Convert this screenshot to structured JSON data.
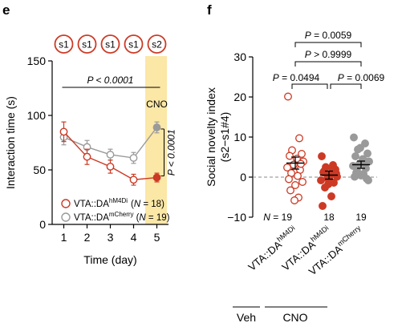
{
  "colors": {
    "red": "#cc3a25",
    "grey": "#9a9a9a",
    "highlight": "#fbe7a6",
    "axis": "#000000"
  },
  "panel_e": {
    "letter": "e",
    "session_labels": [
      "s1",
      "s1",
      "s1",
      "s1",
      "s2"
    ],
    "cno_label": "CNO",
    "pvalue_top": "P < 0.0001",
    "pvalue_side": "P < 0.0001",
    "legend": {
      "hm4di_prefix": "VTA::DA",
      "hm4di_sup": "hM4Di",
      "hm4di_n_open": "(",
      "hm4di_n_italic": "N",
      "hm4di_n_close": " = 18)",
      "mcherry_prefix": "VTA::DA",
      "mcherry_sup": "mCherry",
      "mcherry_n_open": "(",
      "mcherry_n_italic": "N",
      "mcherry_n_close": " = 19)"
    }
  },
  "panel_f": {
    "letter": "f",
    "pvalues": {
      "top": "P = 0.0059",
      "middle": "P > 0.9999",
      "left": "P = 0.0494",
      "right": "P = 0.0069"
    },
    "n_prefix": "N",
    "n_values": [
      "= 19",
      "18",
      "19"
    ],
    "group_labels": [
      {
        "prefix": "VTA::DA",
        "sup": "hM4Di"
      },
      {
        "prefix": "VTA::DA",
        "sup": "hM4Di"
      },
      {
        "prefix": "VTA::DA",
        "sup": "mCherry"
      }
    ],
    "bottom_groups": [
      "Veh",
      "CNO"
    ]
  },
  "chart_data": [
    {
      "type": "line",
      "panel": "e",
      "xlabel": "Time (day)",
      "ylabel": "Interaction time (s)",
      "x": [
        1,
        2,
        3,
        4,
        5
      ],
      "xlim": [
        0.5,
        5.5
      ],
      "ylim": [
        0,
        150
      ],
      "xticks": [
        "1",
        "2",
        "3",
        "4",
        "5"
      ],
      "yticks": [
        "0",
        "50",
        "100",
        "150"
      ],
      "series": [
        {
          "name": "VTA::DA hM4Di (N = 18)",
          "color": "#cc3a25",
          "marker": "open-circle-red",
          "values": [
            85,
            62,
            53,
            41,
            43
          ],
          "error": [
            9,
            7,
            6,
            5,
            4
          ],
          "day5_marker": "filled"
        },
        {
          "name": "VTA::DA mCherry (N = 19)",
          "color": "#9a9a9a",
          "marker": "open-circle-grey",
          "values": [
            80,
            71,
            64,
            61,
            89
          ],
          "error": [
            7,
            6,
            5,
            5,
            5
          ],
          "day5_marker": "filled"
        }
      ]
    },
    {
      "type": "scatter",
      "panel": "f",
      "ylabel": "Social novelty index (s2−s1#4)",
      "ylim": [
        -10,
        30
      ],
      "yticks": [
        "−10",
        "0",
        "10",
        "20",
        "30"
      ],
      "categories": [
        "Veh VTA::DA hM4Di",
        "CNO VTA::DA hM4Di",
        "CNO VTA::DA mCherry"
      ],
      "means": [
        3.5,
        0.5,
        3.1
      ],
      "sem": [
        1.5,
        1.0,
        0.9
      ],
      "points": [
        [
          20.1,
          9.7,
          6.7,
          5.8,
          5.3,
          4.6,
          3.9,
          3.1,
          2.4,
          1.8,
          1.0,
          0.3,
          -0.5,
          -1.2,
          -2.0,
          -3.3,
          -5.1,
          -5.8,
          3.3
        ],
        [
          5.2,
          3.0,
          2.5,
          1.9,
          1.2,
          0.6,
          0.1,
          -0.3,
          -0.8,
          -1.4,
          -2.6,
          -4.8,
          -7.2,
          0.9,
          -0.2,
          1.5,
          2.1,
          -1.8
        ],
        [
          9.9,
          8.4,
          6.9,
          5.9,
          5.2,
          4.5,
          3.9,
          3.3,
          2.8,
          2.2,
          1.6,
          0.8,
          0.1,
          -0.8,
          0.4,
          1.1,
          4.1,
          7.3,
          -0.4
        ]
      ],
      "marker_styles": [
        "open-red",
        "filled-red",
        "filled-grey"
      ]
    }
  ]
}
